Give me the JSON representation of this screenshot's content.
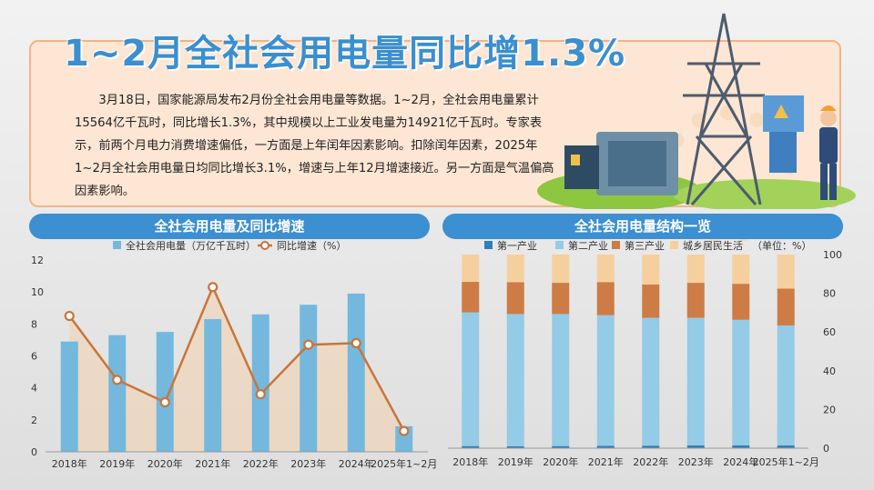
{
  "title": "1~2月全社会用电量同比增1.3%",
  "body": "3月18日，国家能源局发布2月份全社会用电量等数据。1~2月，全社会用电量累计15564亿千瓦时，同比增长1.3%，其中规模以上工业发电量为14921亿千瓦时。专家表示，前两个月电力消费增速偏低，一方面是上年闰年因素影响。扣除闰年因素，2025年1~2月全社会用电量日均同比增长3.1%，增速与上年12月增速接近。另一方面是气温偏高因素影响。",
  "colors": {
    "accent": "#3c8fd0",
    "bar": "#74b8de",
    "line": "#c8753a",
    "primary": "#2f7fb8",
    "secondary": "#94cbe6",
    "tertiary": "#cd7c45",
    "residential": "#f6cf9e"
  },
  "left_panel": {
    "title": "全社会用电量及同比增速"
  },
  "right_panel": {
    "title": "全社会用电量结构一览"
  },
  "chart_data": [
    {
      "type": "bar",
      "title": "全社会用电量及同比增速",
      "categories": [
        "2018年",
        "2019年",
        "2020年",
        "2021年",
        "2022年",
        "2023年",
        "2024年",
        "2025年1~2月"
      ],
      "series": [
        {
          "name": "全社会用电量（万亿千瓦时）",
          "type": "bar",
          "values": [
            6.9,
            7.3,
            7.5,
            8.3,
            8.6,
            9.2,
            9.9,
            1.6
          ]
        },
        {
          "name": "同比增速（%）",
          "type": "line",
          "values": [
            8.5,
            4.5,
            3.1,
            10.3,
            3.6,
            6.7,
            6.8,
            1.3
          ]
        }
      ],
      "yticks": [
        "0",
        "2",
        "4",
        "6",
        "8",
        "10",
        "12"
      ],
      "ylim": [
        0,
        12
      ],
      "legend_position": "top"
    },
    {
      "type": "bar",
      "stacked": true,
      "title": "全社会用电量结构一览",
      "unit_note": "（单位：%）",
      "categories": [
        "2018年",
        "2019年",
        "2020年",
        "2021年",
        "2022年",
        "2023年",
        "2024年",
        "2025年1~2月"
      ],
      "series": [
        {
          "name": "第一产业",
          "values": [
            1.1,
            1.0,
            1.1,
            1.2,
            1.3,
            1.4,
            1.5,
            1.4
          ]
        },
        {
          "name": "第二产业",
          "values": [
            69.0,
            68.3,
            68.2,
            67.5,
            66.0,
            65.9,
            64.8,
            62.0
          ]
        },
        {
          "name": "第三产业",
          "values": [
            15.8,
            16.4,
            16.1,
            17.1,
            17.2,
            18.1,
            18.6,
            19.0
          ]
        },
        {
          "name": "城乡居民生活",
          "values": [
            14.1,
            14.3,
            14.6,
            14.2,
            15.5,
            14.6,
            15.1,
            17.6
          ]
        }
      ],
      "yticks": [
        "0",
        "20",
        "40",
        "60",
        "80",
        "100"
      ],
      "ylim": [
        0,
        100
      ],
      "legend_position": "top"
    }
  ]
}
